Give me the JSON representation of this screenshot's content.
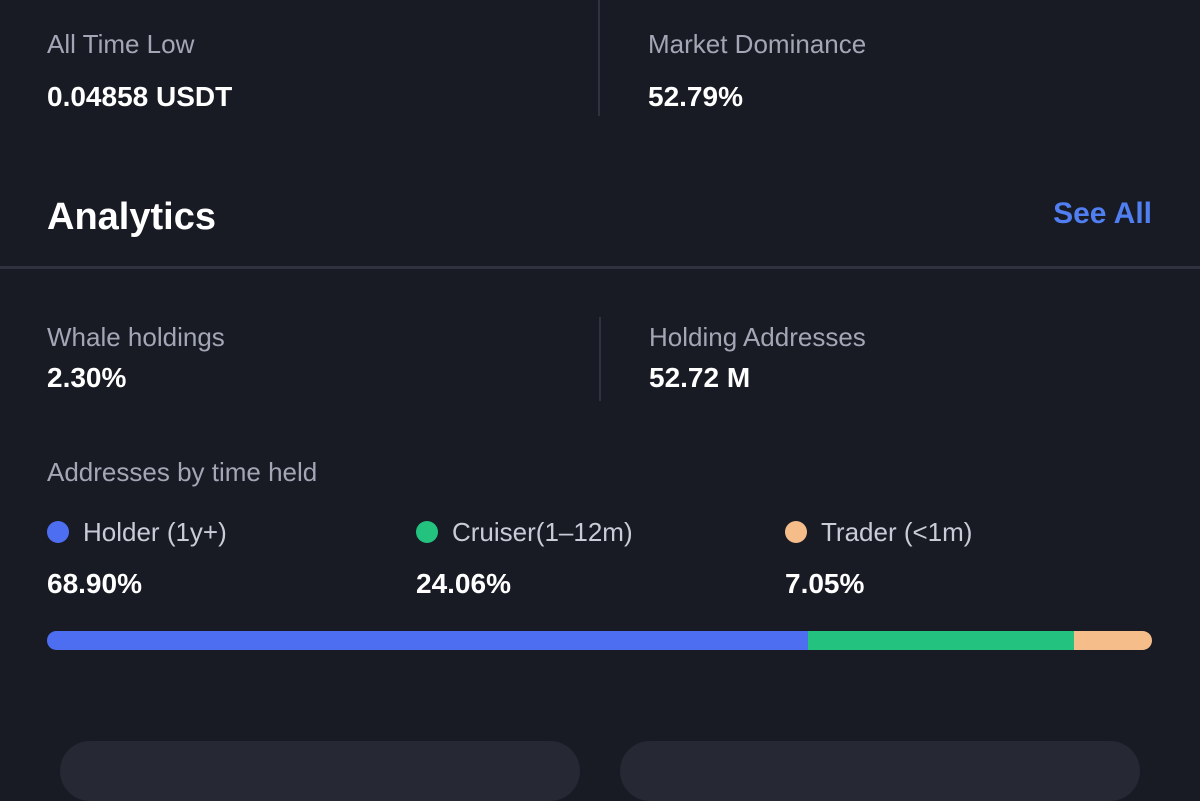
{
  "market_stats": {
    "all_time_low": {
      "label": "All Time Low",
      "value": "0.04858 USDT"
    },
    "market_dominance": {
      "label": "Market Dominance",
      "value": "52.79%"
    }
  },
  "analytics": {
    "title": "Analytics",
    "see_all_label": "See All",
    "whale_holdings": {
      "label": "Whale holdings",
      "value": "2.30%"
    },
    "holding_addresses": {
      "label": "Holding Addresses",
      "value": "52.72 M"
    },
    "time_held": {
      "heading": "Addresses by time held",
      "groups": [
        {
          "label": "Holder (1y+)",
          "value": "68.90%",
          "percent": 68.9,
          "color": "#4e6ef2"
        },
        {
          "label": "Cruiser(1–12m)",
          "value": "24.06%",
          "percent": 24.06,
          "color": "#23c27f"
        },
        {
          "label": "Trader (<1m)",
          "value": "7.05%",
          "percent": 7.05,
          "color": "#f5bd8a"
        }
      ]
    }
  },
  "colors": {
    "background": "#181a24",
    "accent_link": "#4f7ff0",
    "divider": "#30323f"
  }
}
